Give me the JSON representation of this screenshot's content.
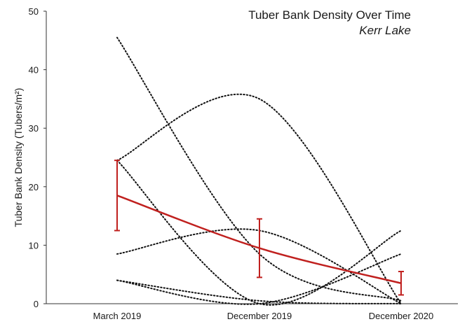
{
  "chart_data": {
    "type": "line",
    "title": "Tuber Bank Density Over Time",
    "subtitle": "Kerr Lake",
    "xlabel": "",
    "ylabel": "Tuber Bank Density (Tubers/m²)",
    "ylim": [
      0,
      50
    ],
    "yticks": [
      0,
      10,
      20,
      30,
      40,
      50
    ],
    "categories": [
      "March 2019",
      "December 2019",
      "December 2020"
    ],
    "grid": false,
    "legend": "none",
    "mean": {
      "values": [
        18.5,
        9.5,
        3.5
      ],
      "error_low": [
        12.5,
        4.5,
        1.5
      ],
      "error_high": [
        24.5,
        14.5,
        5.5
      ],
      "color": "#c0201e"
    },
    "sites": [
      {
        "values": [
          45.5,
          8.5,
          0.5
        ]
      },
      {
        "values": [
          24.5,
          35.0,
          0.0
        ]
      },
      {
        "values": [
          24.5,
          0.0,
          12.5
        ]
      },
      {
        "values": [
          8.5,
          12.5,
          0.0
        ]
      },
      {
        "values": [
          4.0,
          0.0,
          8.5
        ]
      },
      {
        "values": [
          4.0,
          0.5,
          0.0
        ]
      }
    ],
    "site_color": "#111111"
  }
}
